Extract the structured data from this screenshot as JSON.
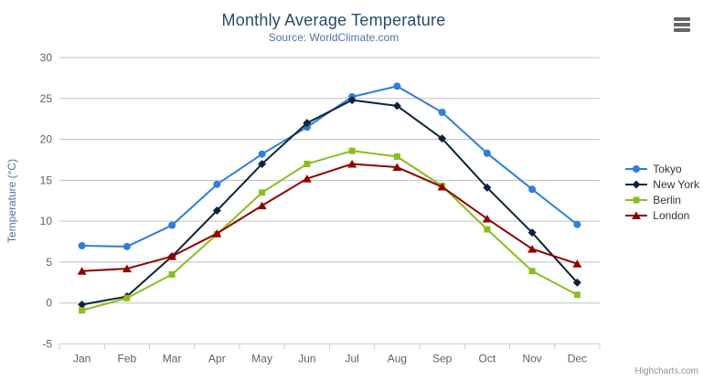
{
  "chart_data": {
    "type": "line",
    "title": "Monthly Average Temperature",
    "subtitle": "Source: WorldClimate.com",
    "xlabel": "",
    "ylabel": "Temperature (°C)",
    "categories": [
      "Jan",
      "Feb",
      "Mar",
      "Apr",
      "May",
      "Jun",
      "Jul",
      "Aug",
      "Sep",
      "Oct",
      "Nov",
      "Dec"
    ],
    "ylim": [
      -5,
      30
    ],
    "y_ticks": [
      -5,
      0,
      5,
      10,
      15,
      20,
      25,
      30
    ],
    "grid": true,
    "legend_position": "right",
    "series": [
      {
        "name": "Tokyo",
        "color": "#2f7ed8",
        "marker": "circle",
        "values": [
          7.0,
          6.9,
          9.5,
          14.5,
          18.2,
          21.5,
          25.2,
          26.5,
          23.3,
          18.3,
          13.9,
          9.6
        ]
      },
      {
        "name": "New York",
        "color": "#0d233a",
        "marker": "diamond",
        "values": [
          -0.2,
          0.8,
          5.7,
          11.3,
          17.0,
          22.0,
          24.8,
          24.1,
          20.1,
          14.1,
          8.6,
          2.5
        ]
      },
      {
        "name": "Berlin",
        "color": "#8bbc21",
        "marker": "square",
        "values": [
          -0.9,
          0.6,
          3.5,
          8.4,
          13.5,
          17.0,
          18.6,
          17.9,
          14.3,
          9.0,
          3.9,
          1.0
        ]
      },
      {
        "name": "London",
        "color": "#910000",
        "marker": "triangle",
        "values": [
          3.9,
          4.2,
          5.7,
          8.5,
          11.9,
          15.2,
          17.0,
          16.6,
          14.2,
          10.3,
          6.6,
          4.8
        ]
      }
    ]
  },
  "credits": "Highcharts.com",
  "icons": {
    "context_menu": "hamburger-icon"
  },
  "colors": {
    "title": "#274b6d",
    "subtitle": "#4d759e",
    "axis_label": "#606060",
    "axis_title": "#4d759e",
    "grid": "#c0c0c0",
    "axis_line": "#c0d0e0",
    "legend_text": "#333333",
    "credits": "#909090"
  }
}
